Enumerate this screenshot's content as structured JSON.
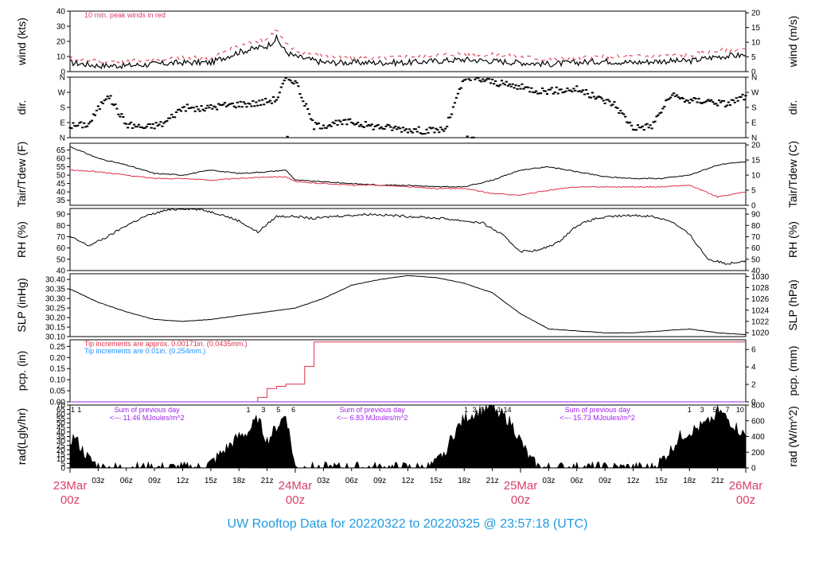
{
  "footer_title": "UW Rooftop Data for 20220322  to  20220325 @ 23:57:18  (UTC)",
  "colors": {
    "primary": "#000000",
    "red": "#e0304c",
    "blue": "#1e90ff",
    "purple": "#a020f0",
    "pink": "#d9406b",
    "title": "#1e9be0"
  },
  "x_axis": {
    "hour_ticks": [
      "03z",
      "06z",
      "09z",
      "12z",
      "15z",
      "18z",
      "21z"
    ],
    "day_labels": [
      {
        "date": "23Mar",
        "time": "00z"
      },
      {
        "date": "24Mar",
        "time": "00z"
      },
      {
        "date": "25Mar",
        "time": "00z"
      },
      {
        "date": "26Mar",
        "time": "00z"
      }
    ],
    "days": 3
  },
  "chart_data": [
    {
      "type": "line",
      "id": "wind",
      "ylabel_left": "wind (kts)",
      "ylabel_right": "wind (m/s)",
      "ylim": [
        0,
        40
      ],
      "left_ticks": [
        "0",
        "10",
        "20",
        "30",
        "40"
      ],
      "right_ticks": [
        "0",
        "5",
        "10",
        "15",
        "20"
      ],
      "right_scale": 0.5144,
      "annotations": [
        {
          "text": "10 min. peak winds in red",
          "color": "red"
        }
      ],
      "x_hours": [
        0,
        3,
        6,
        9,
        12,
        15,
        18,
        21,
        22,
        23,
        24,
        27,
        30,
        33,
        36,
        39,
        42,
        45,
        48,
        51,
        54,
        57,
        60,
        63,
        66,
        69,
        72
      ],
      "series": [
        {
          "values": [
            6,
            4,
            4,
            5,
            6,
            6,
            13,
            17,
            22,
            13,
            10,
            6,
            6,
            6,
            6,
            7,
            8,
            7,
            6,
            5,
            6,
            7,
            6,
            7,
            7,
            10,
            11
          ]
        },
        {
          "values": [
            9,
            7,
            7,
            8,
            9,
            9,
            17,
            22,
            28,
            18,
            14,
            10,
            9,
            9,
            10,
            11,
            12,
            11,
            10,
            8,
            9,
            10,
            10,
            11,
            11,
            14,
            15
          ],
          "style": "dashed"
        }
      ]
    },
    {
      "type": "scatter",
      "id": "dir",
      "ylabel_left": "dir.",
      "ylabel_right": "dir.",
      "ylim": [
        0,
        360
      ],
      "left_ticks": [
        "N",
        "E",
        "S",
        "W",
        "N"
      ],
      "right_ticks": [
        "N",
        "E",
        "S",
        "W",
        "N"
      ],
      "x_hours": [
        0,
        2,
        4,
        6,
        8,
        10,
        12,
        14,
        16,
        18,
        20,
        22,
        23,
        24,
        26,
        28,
        30,
        32,
        34,
        36,
        38,
        40,
        42,
        44,
        46,
        48,
        50,
        52,
        54,
        56,
        58,
        60,
        62,
        64,
        66,
        68,
        70,
        72
      ],
      "series": [
        {
          "values": [
            70,
            80,
            260,
            80,
            60,
            85,
            180,
            170,
            190,
            200,
            205,
            230,
            350,
            340,
            70,
            80,
            95,
            70,
            60,
            50,
            40,
            50,
            350,
            345,
            320,
            300,
            280,
            280,
            290,
            240,
            200,
            60,
            70,
            250,
            220,
            220,
            200,
            250
          ]
        }
      ]
    },
    {
      "type": "line",
      "id": "temp",
      "ylabel_left": "Tair/Tdew (F)",
      "ylabel_right": "Tair/Tdew (C)",
      "ylim": [
        32,
        69
      ],
      "left_ticks": [
        "35",
        "40",
        "45",
        "50",
        "55",
        "60",
        "65"
      ],
      "right_ticks": [
        "0",
        "5",
        "10",
        "15",
        "20"
      ],
      "x_hours": [
        0,
        3,
        6,
        9,
        12,
        15,
        18,
        21,
        23,
        24,
        27,
        30,
        33,
        36,
        39,
        42,
        45,
        48,
        51,
        54,
        57,
        60,
        63,
        66,
        69,
        72
      ],
      "series": [
        {
          "name": "Tair",
          "values": [
            67,
            60,
            56,
            51,
            50,
            53,
            51,
            52,
            53,
            47,
            46,
            45,
            44,
            44,
            43,
            43,
            47,
            53,
            55,
            52,
            49,
            48,
            48,
            50,
            56,
            58
          ],
          "color": "black"
        },
        {
          "name": "Tdew",
          "values": [
            53,
            52,
            50,
            48,
            48,
            47,
            48,
            49,
            49,
            46,
            45,
            44,
            44,
            43,
            42,
            42,
            39,
            38,
            41,
            43,
            43,
            43,
            43,
            44,
            37,
            40
          ],
          "color": "red"
        }
      ]
    },
    {
      "type": "line",
      "id": "rh",
      "ylabel_left": "RH (%)",
      "ylabel_right": "RH (%)",
      "ylim": [
        40,
        95
      ],
      "left_ticks": [
        "40",
        "50",
        "60",
        "70",
        "80",
        "90"
      ],
      "right_ticks": [
        "40",
        "50",
        "60",
        "70",
        "80",
        "90"
      ],
      "x_hours": [
        0,
        2,
        4,
        6,
        8,
        10,
        12,
        14,
        16,
        18,
        20,
        22,
        24,
        26,
        28,
        30,
        32,
        34,
        36,
        38,
        40,
        42,
        44,
        46,
        48,
        50,
        52,
        54,
        56,
        58,
        60,
        62,
        64,
        66,
        68,
        70,
        72
      ],
      "series": [
        {
          "values": [
            70,
            62,
            70,
            80,
            88,
            93,
            95,
            94,
            90,
            84,
            74,
            88,
            88,
            86,
            88,
            89,
            90,
            89,
            88,
            87,
            86,
            84,
            82,
            72,
            57,
            58,
            65,
            80,
            86,
            88,
            89,
            88,
            84,
            72,
            50,
            46,
            49
          ]
        }
      ]
    },
    {
      "type": "line",
      "id": "slp",
      "ylabel_left": "SLP (inHg)",
      "ylabel_right": "SLP (hPa)",
      "ylim": [
        30.1,
        30.43
      ],
      "left_ticks": [
        "30.10",
        "30.15",
        "30.20",
        "30.25",
        "30.30",
        "30.35",
        "30.40"
      ],
      "right_ticks": [
        "1020",
        "1022",
        "1024",
        "1026",
        "1028",
        "1030"
      ],
      "x_hours": [
        0,
        3,
        6,
        9,
        12,
        15,
        18,
        21,
        24,
        27,
        30,
        33,
        36,
        39,
        42,
        45,
        48,
        51,
        54,
        57,
        60,
        63,
        66,
        69,
        72
      ],
      "series": [
        {
          "values": [
            30.35,
            30.28,
            30.23,
            30.19,
            30.18,
            30.19,
            30.21,
            30.23,
            30.25,
            30.3,
            30.37,
            30.4,
            30.42,
            30.41,
            30.38,
            30.33,
            30.22,
            30.14,
            30.13,
            30.12,
            30.12,
            30.13,
            30.14,
            30.12,
            30.11
          ]
        }
      ]
    },
    {
      "type": "line",
      "id": "pcp",
      "ylabel_left": "pcp. (in)",
      "ylabel_right": "pcp. (mm)",
      "ylim": [
        0,
        0.28
      ],
      "left_ticks": [
        "0.00",
        "0.05",
        "0.10",
        "0.15",
        "0.20",
        "0.25"
      ],
      "right_ticks": [
        "0",
        "2",
        "4",
        "6"
      ],
      "annotations": [
        {
          "text": "Tip increments are approx. 0.00171in. (0.0435mm.)",
          "color": "red"
        },
        {
          "text": "Tip increments are 0.01in. (0.254mm.)",
          "color": "blue"
        }
      ],
      "x_hours": [
        0,
        19,
        20,
        21,
        22,
        23,
        24,
        25,
        26,
        72
      ],
      "series": [
        {
          "name": "fine",
          "values": [
            0,
            0,
            0.02,
            0.06,
            0.07,
            0.08,
            0.08,
            0.16,
            0.27,
            0.27
          ],
          "color": "red"
        },
        {
          "name": "coarse",
          "values": [
            0,
            0,
            0,
            0,
            0,
            0,
            0,
            0,
            0,
            0
          ],
          "color": "purple"
        }
      ]
    },
    {
      "type": "area",
      "id": "rad",
      "ylabel_left": "rad(Lgly/hr)",
      "ylabel_right": "rad (W/m^2)",
      "ylim": [
        0,
        70
      ],
      "left_ticks": [
        "0",
        "5",
        "10",
        "15",
        "20",
        "25",
        "30",
        "35",
        "40",
        "45",
        "50",
        "55",
        "60",
        "65",
        "70"
      ],
      "right_ticks": [
        "0",
        "200",
        "400",
        "600",
        "800"
      ],
      "annotations": [
        {
          "text": "Sum of previous day",
          "text2": "<--- 11.46 MJoules/m^2"
        },
        {
          "text": "Sum of previous day",
          "text2": "<--- 6.83 MJoules/m^2"
        },
        {
          "text": "Sum of previous day",
          "text2": "<--- 15.73 MJoules/m^2"
        }
      ],
      "day_markers": [
        [
          "1",
          "1"
        ],
        [
          "1",
          "3",
          "5",
          "6"
        ],
        [
          "1",
          "3",
          "5",
          "8",
          "1",
          "14"
        ],
        [
          "1",
          "3",
          "5",
          "7",
          "10"
        ]
      ],
      "x_hours": [
        0,
        0.5,
        1,
        2,
        3,
        3.5,
        14,
        15,
        16,
        17,
        18,
        19,
        20,
        21,
        22,
        23,
        24,
        26,
        38,
        39,
        40,
        41,
        42,
        43,
        44,
        45,
        46,
        47,
        48,
        49,
        50,
        62,
        63,
        64,
        65,
        66,
        67,
        68,
        69,
        70,
        71,
        72
      ],
      "series": [
        {
          "values": [
            30,
            35,
            25,
            10,
            2,
            0,
            0,
            5,
            15,
            25,
            35,
            40,
            55,
            30,
            45,
            60,
            0,
            0,
            0,
            5,
            20,
            40,
            55,
            60,
            65,
            68,
            60,
            50,
            30,
            10,
            0,
            0,
            8,
            20,
            35,
            40,
            45,
            50,
            65,
            55,
            45,
            35
          ]
        }
      ]
    }
  ]
}
